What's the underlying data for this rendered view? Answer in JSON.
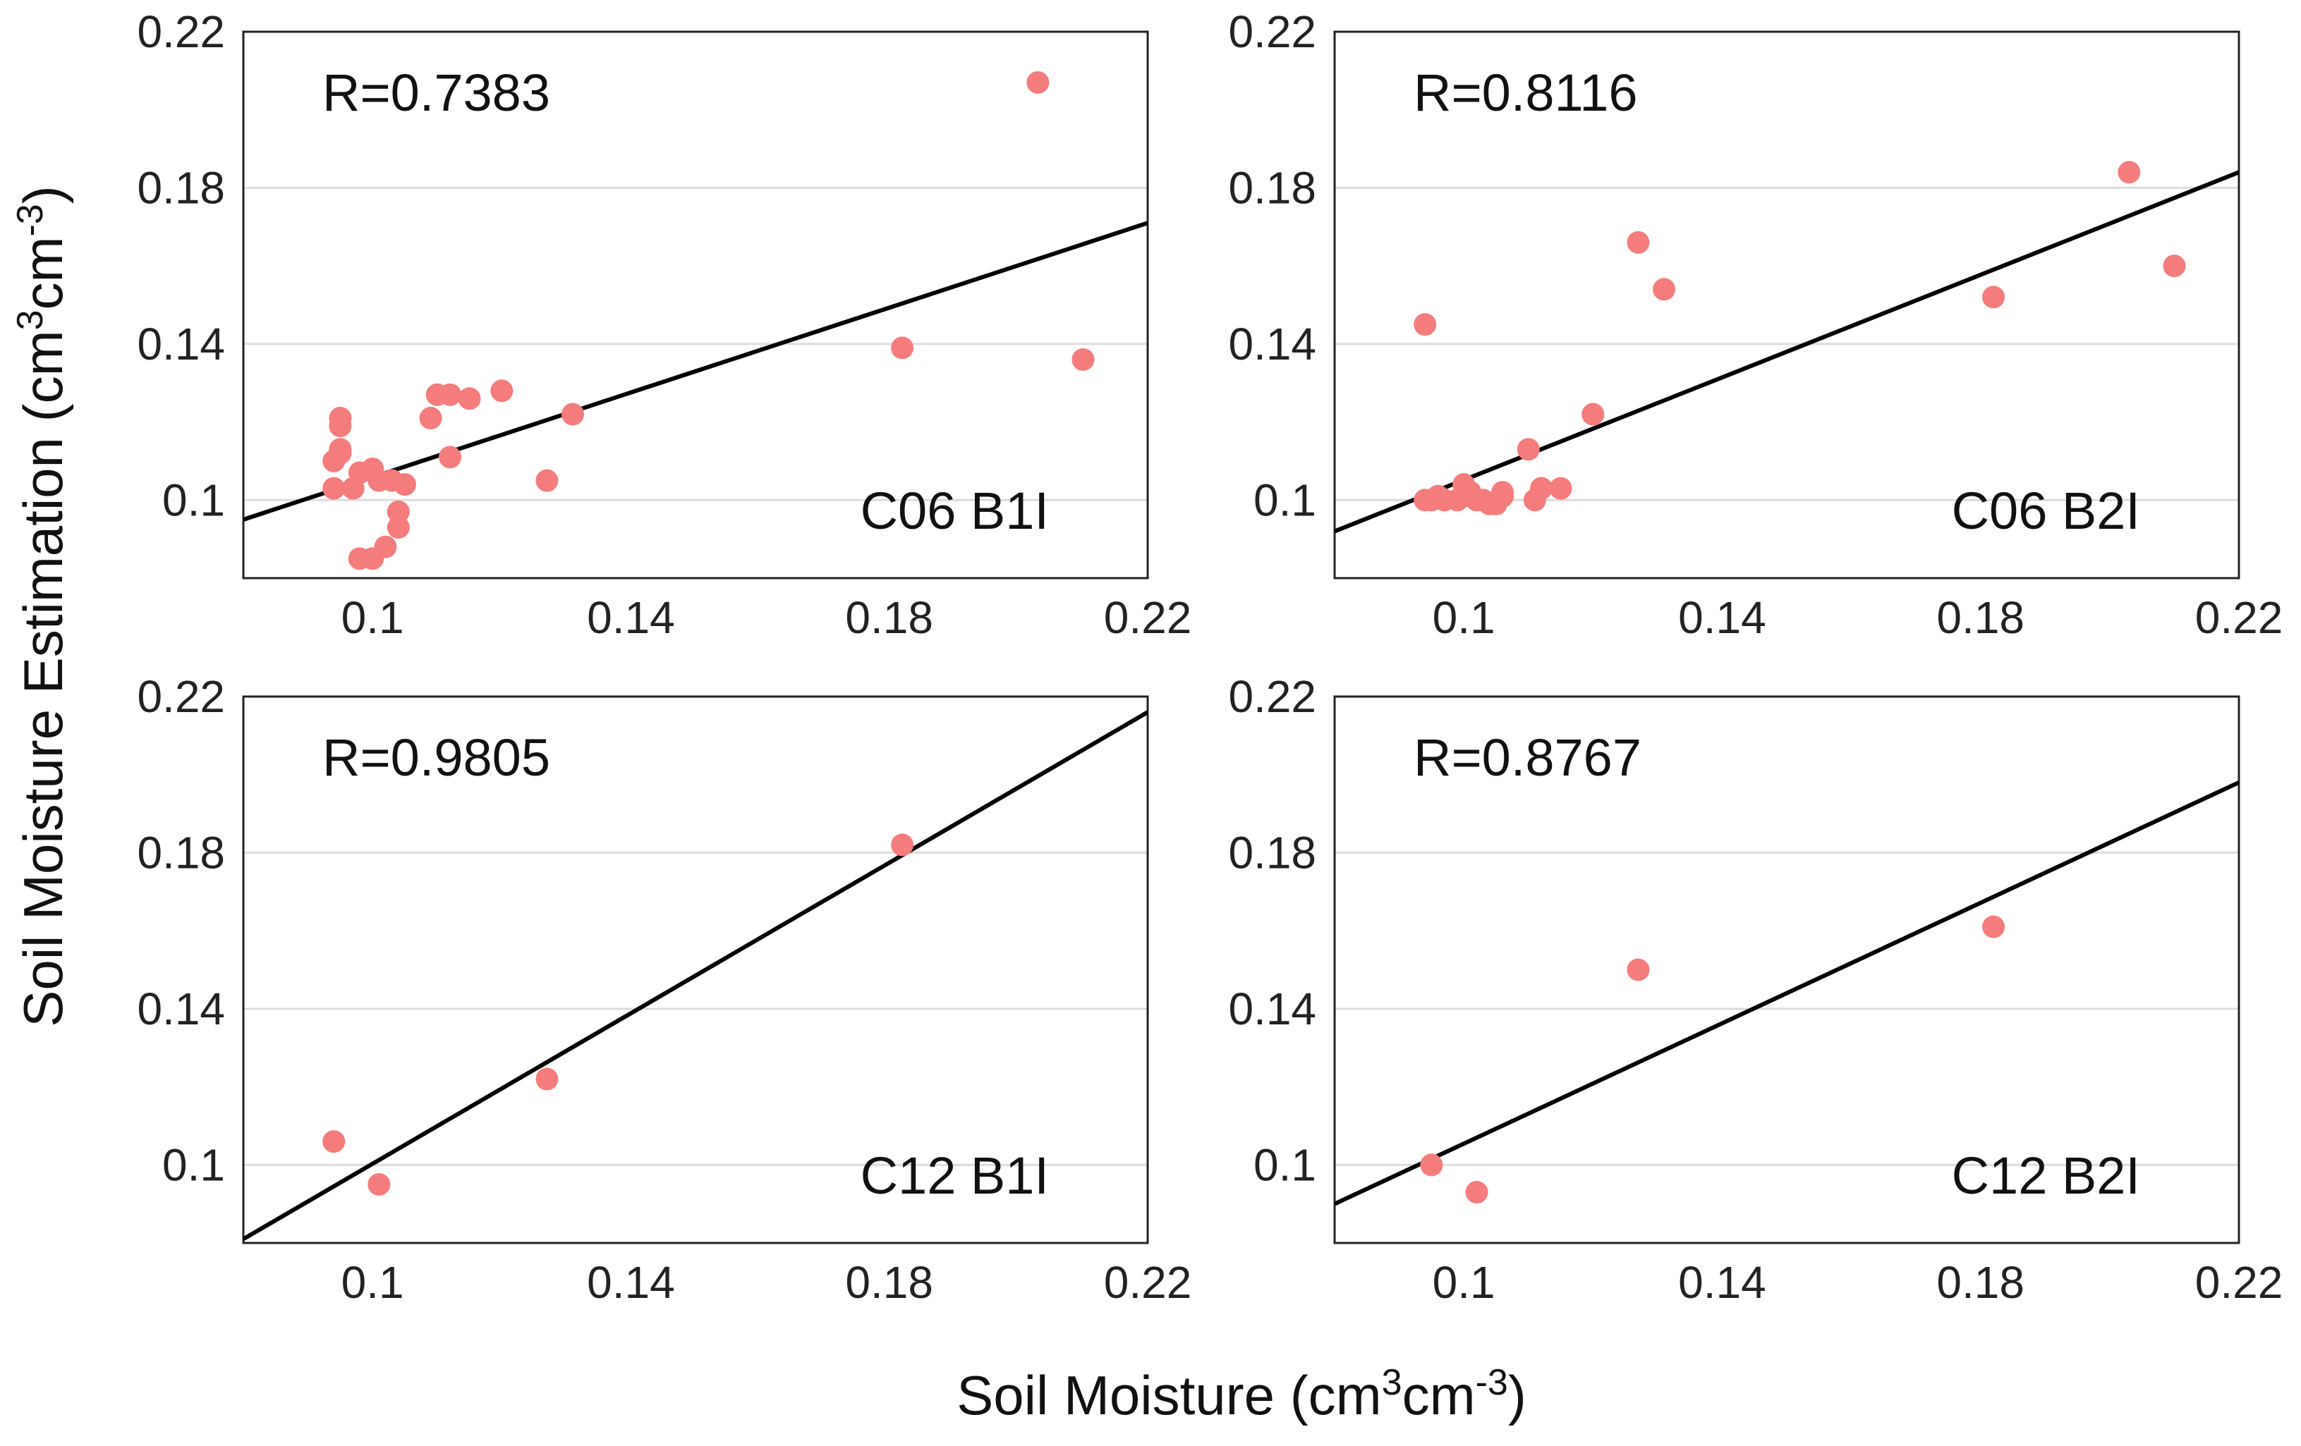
{
  "figure": {
    "xlabel": "Soil Moisture (cm",
    "xlabel_sup1": "3",
    "xlabel_mid": "cm",
    "xlabel_sup2": "-3",
    "xlabel_end": ")",
    "ylabel": "Soil Moisture Estimation (cm",
    "ylabel_sup1": "3",
    "ylabel_mid": "cm",
    "ylabel_sup2": "-3",
    "ylabel_end": ")",
    "point_color": "#f47c7c",
    "line_color": "#000000"
  },
  "chart_data": [
    {
      "type": "scatter",
      "panel_label": "C06 B1I",
      "r_label": "R=0.7383",
      "xlim": [
        0.08,
        0.22
      ],
      "ylim": [
        0.08,
        0.22
      ],
      "xticks": [
        "0.1",
        "0.14",
        "0.18",
        "0.22"
      ],
      "yticks": [
        "0.1",
        "0.14",
        "0.18",
        "0.22"
      ],
      "fit_line": {
        "x": [
          0.08,
          0.22
        ],
        "y": [
          0.095,
          0.171
        ]
      },
      "points": [
        {
          "x": 0.094,
          "y": 0.103
        },
        {
          "x": 0.094,
          "y": 0.11
        },
        {
          "x": 0.095,
          "y": 0.113
        },
        {
          "x": 0.095,
          "y": 0.119
        },
        {
          "x": 0.095,
          "y": 0.121
        },
        {
          "x": 0.095,
          "y": 0.112
        },
        {
          "x": 0.097,
          "y": 0.103
        },
        {
          "x": 0.098,
          "y": 0.107
        },
        {
          "x": 0.098,
          "y": 0.085
        },
        {
          "x": 0.1,
          "y": 0.085
        },
        {
          "x": 0.1,
          "y": 0.108
        },
        {
          "x": 0.101,
          "y": 0.105
        },
        {
          "x": 0.102,
          "y": 0.088
        },
        {
          "x": 0.103,
          "y": 0.105
        },
        {
          "x": 0.104,
          "y": 0.093
        },
        {
          "x": 0.104,
          "y": 0.097
        },
        {
          "x": 0.105,
          "y": 0.104
        },
        {
          "x": 0.109,
          "y": 0.121
        },
        {
          "x": 0.11,
          "y": 0.127
        },
        {
          "x": 0.112,
          "y": 0.111
        },
        {
          "x": 0.112,
          "y": 0.127
        },
        {
          "x": 0.115,
          "y": 0.126
        },
        {
          "x": 0.12,
          "y": 0.128
        },
        {
          "x": 0.127,
          "y": 0.105
        },
        {
          "x": 0.131,
          "y": 0.122
        },
        {
          "x": 0.182,
          "y": 0.139
        },
        {
          "x": 0.203,
          "y": 0.207
        },
        {
          "x": 0.21,
          "y": 0.136
        }
      ]
    },
    {
      "type": "scatter",
      "panel_label": "C06 B2I",
      "r_label": "R=0.8116",
      "xlim": [
        0.08,
        0.22
      ],
      "ylim": [
        0.08,
        0.22
      ],
      "xticks": [
        "0.1",
        "0.14",
        "0.18",
        "0.22"
      ],
      "yticks": [
        "0.1",
        "0.14",
        "0.18",
        "0.22"
      ],
      "fit_line": {
        "x": [
          0.08,
          0.22
        ],
        "y": [
          0.092,
          0.184
        ]
      },
      "points": [
        {
          "x": 0.094,
          "y": 0.1
        },
        {
          "x": 0.095,
          "y": 0.1
        },
        {
          "x": 0.096,
          "y": 0.101
        },
        {
          "x": 0.097,
          "y": 0.1
        },
        {
          "x": 0.099,
          "y": 0.1
        },
        {
          "x": 0.1,
          "y": 0.104
        },
        {
          "x": 0.1,
          "y": 0.101
        },
        {
          "x": 0.101,
          "y": 0.102
        },
        {
          "x": 0.102,
          "y": 0.1
        },
        {
          "x": 0.103,
          "y": 0.1
        },
        {
          "x": 0.104,
          "y": 0.099
        },
        {
          "x": 0.105,
          "y": 0.099
        },
        {
          "x": 0.106,
          "y": 0.101
        },
        {
          "x": 0.106,
          "y": 0.102
        },
        {
          "x": 0.11,
          "y": 0.113
        },
        {
          "x": 0.111,
          "y": 0.1
        },
        {
          "x": 0.112,
          "y": 0.103
        },
        {
          "x": 0.115,
          "y": 0.103
        },
        {
          "x": 0.094,
          "y": 0.145
        },
        {
          "x": 0.12,
          "y": 0.122
        },
        {
          "x": 0.127,
          "y": 0.166
        },
        {
          "x": 0.131,
          "y": 0.154
        },
        {
          "x": 0.182,
          "y": 0.152
        },
        {
          "x": 0.203,
          "y": 0.184
        },
        {
          "x": 0.21,
          "y": 0.16
        }
      ]
    },
    {
      "type": "scatter",
      "panel_label": "C12 B1I",
      "r_label": "R=0.9805",
      "xlim": [
        0.08,
        0.22
      ],
      "ylim": [
        0.08,
        0.22
      ],
      "xticks": [
        "0.1",
        "0.14",
        "0.18",
        "0.22"
      ],
      "yticks": [
        "0.1",
        "0.14",
        "0.18",
        "0.22"
      ],
      "fit_line": {
        "x": [
          0.08,
          0.22
        ],
        "y": [
          0.081,
          0.216
        ]
      },
      "points": [
        {
          "x": 0.094,
          "y": 0.106
        },
        {
          "x": 0.101,
          "y": 0.095
        },
        {
          "x": 0.127,
          "y": 0.122
        },
        {
          "x": 0.182,
          "y": 0.182
        }
      ]
    },
    {
      "type": "scatter",
      "panel_label": "C12 B2I",
      "r_label": "R=0.8767",
      "xlim": [
        0.08,
        0.22
      ],
      "ylim": [
        0.08,
        0.22
      ],
      "xticks": [
        "0.1",
        "0.14",
        "0.18",
        "0.22"
      ],
      "yticks": [
        "0.1",
        "0.14",
        "0.18",
        "0.22"
      ],
      "fit_line": {
        "x": [
          0.08,
          0.22
        ],
        "y": [
          0.09,
          0.198
        ]
      },
      "points": [
        {
          "x": 0.095,
          "y": 0.1
        },
        {
          "x": 0.102,
          "y": 0.093
        },
        {
          "x": 0.127,
          "y": 0.15
        },
        {
          "x": 0.182,
          "y": 0.161
        }
      ]
    }
  ]
}
